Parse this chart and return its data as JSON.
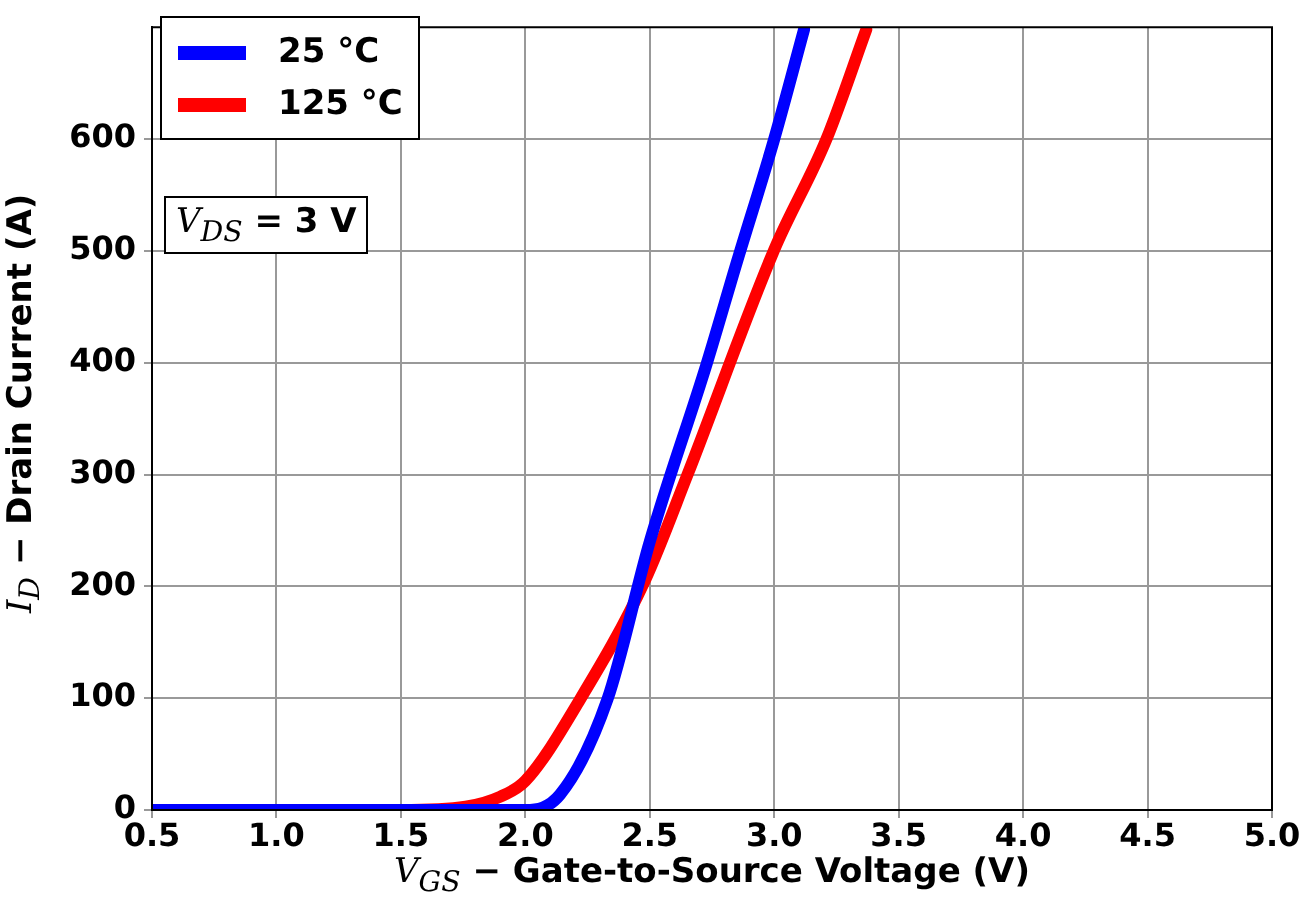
{
  "chart_data": {
    "type": "line",
    "xlabel": "V$_{GS}$ − Gate-to-Source Voltage (V)",
    "ylabel": "I$_{D}$ − Drain Current (A)",
    "xlim": [
      0.5,
      5.0
    ],
    "ylim": [
      0,
      700
    ],
    "xticks": [
      {
        "value": 0.5,
        "label": "0.5"
      },
      {
        "value": 1,
        "label": "1.0"
      },
      {
        "value": 1.5,
        "label": "1.5"
      },
      {
        "value": 2,
        "label": "2.0"
      },
      {
        "value": 2.5,
        "label": "2.5"
      },
      {
        "value": 3,
        "label": "3.0"
      },
      {
        "value": 3.5,
        "label": "3.5"
      },
      {
        "value": 4,
        "label": "4.0"
      },
      {
        "value": 4.5,
        "label": "4.5"
      },
      {
        "value": 5,
        "label": "5.0"
      }
    ],
    "yticks": [
      0,
      100,
      200,
      300,
      400,
      500,
      600
    ],
    "grid": true,
    "legend": "top left",
    "marker": "none",
    "line_style": "solid",
    "annotations": [
      "V$_{DS}$ = 3 V"
    ],
    "series": [
      {
        "name": "25 °C",
        "color": "#0000ff",
        "x": [
          0.5,
          1.5,
          1.85,
          2.0,
          2.14,
          2.33,
          2.5,
          2.73,
          2.85,
          3.0,
          3.12
        ],
        "values": [
          0,
          0,
          0,
          0,
          14,
          99,
          240,
          400,
          490,
          600,
          698
        ]
      },
      {
        "name": "125 °C",
        "color": "#ff0000",
        "x": [
          0.5,
          1.5,
          1.76,
          1.9,
          2.0,
          2.22,
          2.48,
          2.65,
          3.0,
          3.21,
          3.37
        ],
        "values": [
          0,
          0,
          3,
          12,
          26,
          99,
          205,
          299,
          501,
          600,
          698
        ]
      }
    ]
  }
}
